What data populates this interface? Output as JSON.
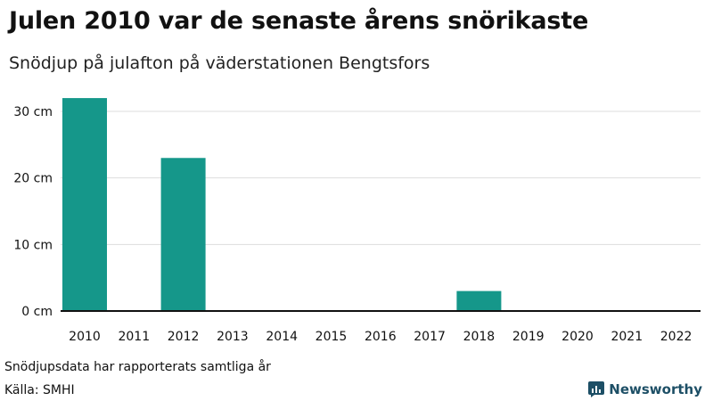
{
  "title": "Julen 2010 var de senaste årens snörikaste",
  "subtitle": "Snödjup på julafton på väderstationen Bengtsfors",
  "footer": {
    "note": "Snödjupsdata har rapporterats samtliga år",
    "source": "Källa: SMHI"
  },
  "brand": {
    "name": "Newsworthy",
    "icon": "bar-chart-logo-icon",
    "color": "#1d4f66"
  },
  "chart_data": {
    "type": "bar",
    "categories": [
      "2010",
      "2011",
      "2012",
      "2013",
      "2014",
      "2015",
      "2016",
      "2017",
      "2018",
      "2019",
      "2020",
      "2021",
      "2022"
    ],
    "values": [
      32,
      0,
      23,
      0,
      0,
      0,
      0,
      0,
      3,
      0,
      0,
      0,
      0
    ],
    "ylim": [
      0,
      30
    ],
    "yticks": [
      0,
      10,
      20,
      30
    ],
    "ytick_labels": [
      "0 cm",
      "10 cm",
      "20 cm",
      "30 cm"
    ],
    "bar_color": "#15978a",
    "grid": true
  }
}
